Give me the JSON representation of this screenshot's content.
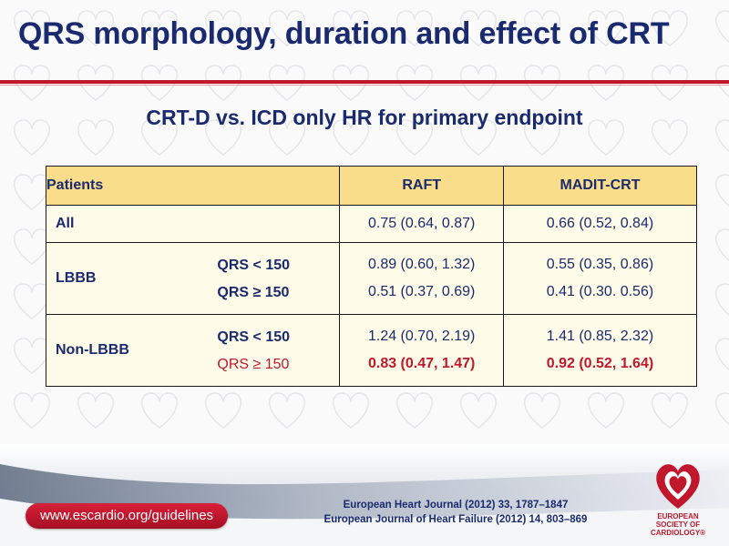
{
  "slide": {
    "title": "QRS morphology, duration and effect of CRT",
    "subtitle": "CRT-D vs. ICD only HR for primary endpoint"
  },
  "table": {
    "headers": {
      "patients": "Patients",
      "raft": "RAFT",
      "madit": "MADIT-CRT"
    },
    "all": {
      "label": "All",
      "raft": "0.75 (0.64, 0.87)",
      "madit": "0.66 (0.52, 0.84)"
    },
    "lbbb": {
      "label": "LBBB",
      "sub": [
        {
          "label": "QRS < 150",
          "raft": "0.89 (0.60, 1.32)",
          "madit": "0.55 (0.35, 0.86)"
        },
        {
          "label": "QRS ≥ 150",
          "raft": "0.51 (0.37, 0.69)",
          "madit": "0.41 (0.30. 0.56)"
        }
      ]
    },
    "non_lbbb": {
      "label": "Non-LBBB",
      "sub": [
        {
          "label": "QRS < 150",
          "raft": "1.24 (0.70, 2.19)",
          "madit": "1.41 (0.85, 2.32)"
        },
        {
          "label": "QRS ≥ 150",
          "raft": "0.83 (0.47, 1.47)",
          "madit": "0.92 (0.52, 1.64)"
        }
      ]
    },
    "highlight_color": "#c0172d",
    "header_bg": "#f9dd8a"
  },
  "footer": {
    "url": "www.escardio.org/guidelines",
    "ref1": "European Heart Journal (2012) 33, 1787–1847",
    "ref2": "European Journal of Heart Failure (2012) 14, 803–869",
    "logo": {
      "icon": "heart-logo-icon",
      "line1": "EUROPEAN",
      "line2": "SOCIETY OF",
      "line3": "CARDIOLOGY®"
    }
  },
  "colors": {
    "navy": "#1a2a6e",
    "brand_red": "#c0172d"
  }
}
